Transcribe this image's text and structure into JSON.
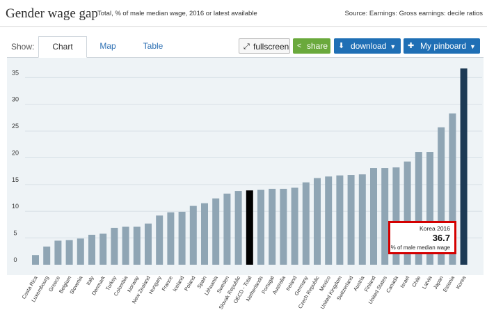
{
  "header": {
    "title": "Gender wage gap",
    "subtitle": "Total, % of male median wage, 2016 or latest available",
    "source": "Source: Earnings: Gross earnings: decile ratios"
  },
  "toolbar": {
    "show_label": "Show:",
    "tabs": [
      {
        "label": "Chart",
        "active": true
      },
      {
        "label": "Map",
        "active": false
      },
      {
        "label": "Table",
        "active": false
      }
    ],
    "fullscreen_label": "fullscreen",
    "share_label": "share",
    "download_label": "download",
    "pinboard_label": "My pinboard"
  },
  "tooltip": {
    "country": "Korea 2016",
    "value": "36.7",
    "unit": "% of male median wage"
  },
  "colors": {
    "bar": "#8fa5b4",
    "oecd": "#000000",
    "highlight": "#1d3a55",
    "background": "#eef3f6",
    "tooltip_border": "#d40000"
  },
  "chart_data": {
    "type": "bar",
    "title": "Gender wage gap",
    "ylim": [
      0,
      37
    ],
    "y_ticks": [
      0,
      5,
      10,
      15,
      20,
      25,
      30,
      35
    ],
    "grid": true,
    "categories": [
      "Costa Rica",
      "Luxembourg",
      "Greece",
      "Belgium",
      "Slovenia",
      "Italy",
      "Denmark",
      "Turkey",
      "Colombia",
      "Norway",
      "New Zealand",
      "Hungary",
      "France",
      "Iceland",
      "Poland",
      "Spain",
      "Lithuania",
      "Sweden",
      "Slovak Republic",
      "OECD - Total",
      "Netherlands",
      "Portugal",
      "Australia",
      "Ireland",
      "Germany",
      "Czech Republic",
      "Mexico",
      "United Kingdom",
      "Switzerland",
      "Austria",
      "Finland",
      "United States",
      "Canada",
      "Israel",
      "Chile",
      "Latvia",
      "Japan",
      "Estonia",
      "Korea"
    ],
    "values": [
      1.8,
      3.4,
      4.5,
      4.6,
      4.9,
      5.6,
      5.8,
      6.9,
      7.1,
      7.1,
      7.7,
      9.2,
      9.8,
      9.9,
      11.0,
      11.5,
      12.4,
      13.3,
      13.8,
      13.9,
      14.0,
      14.2,
      14.2,
      14.4,
      15.4,
      16.2,
      16.5,
      16.7,
      16.8,
      16.9,
      18.1,
      18.1,
      18.2,
      19.3,
      21.1,
      21.1,
      25.7,
      28.3,
      36.7
    ],
    "highlight": {
      "OECD - Total": "oecd",
      "Korea": "highlight"
    }
  }
}
